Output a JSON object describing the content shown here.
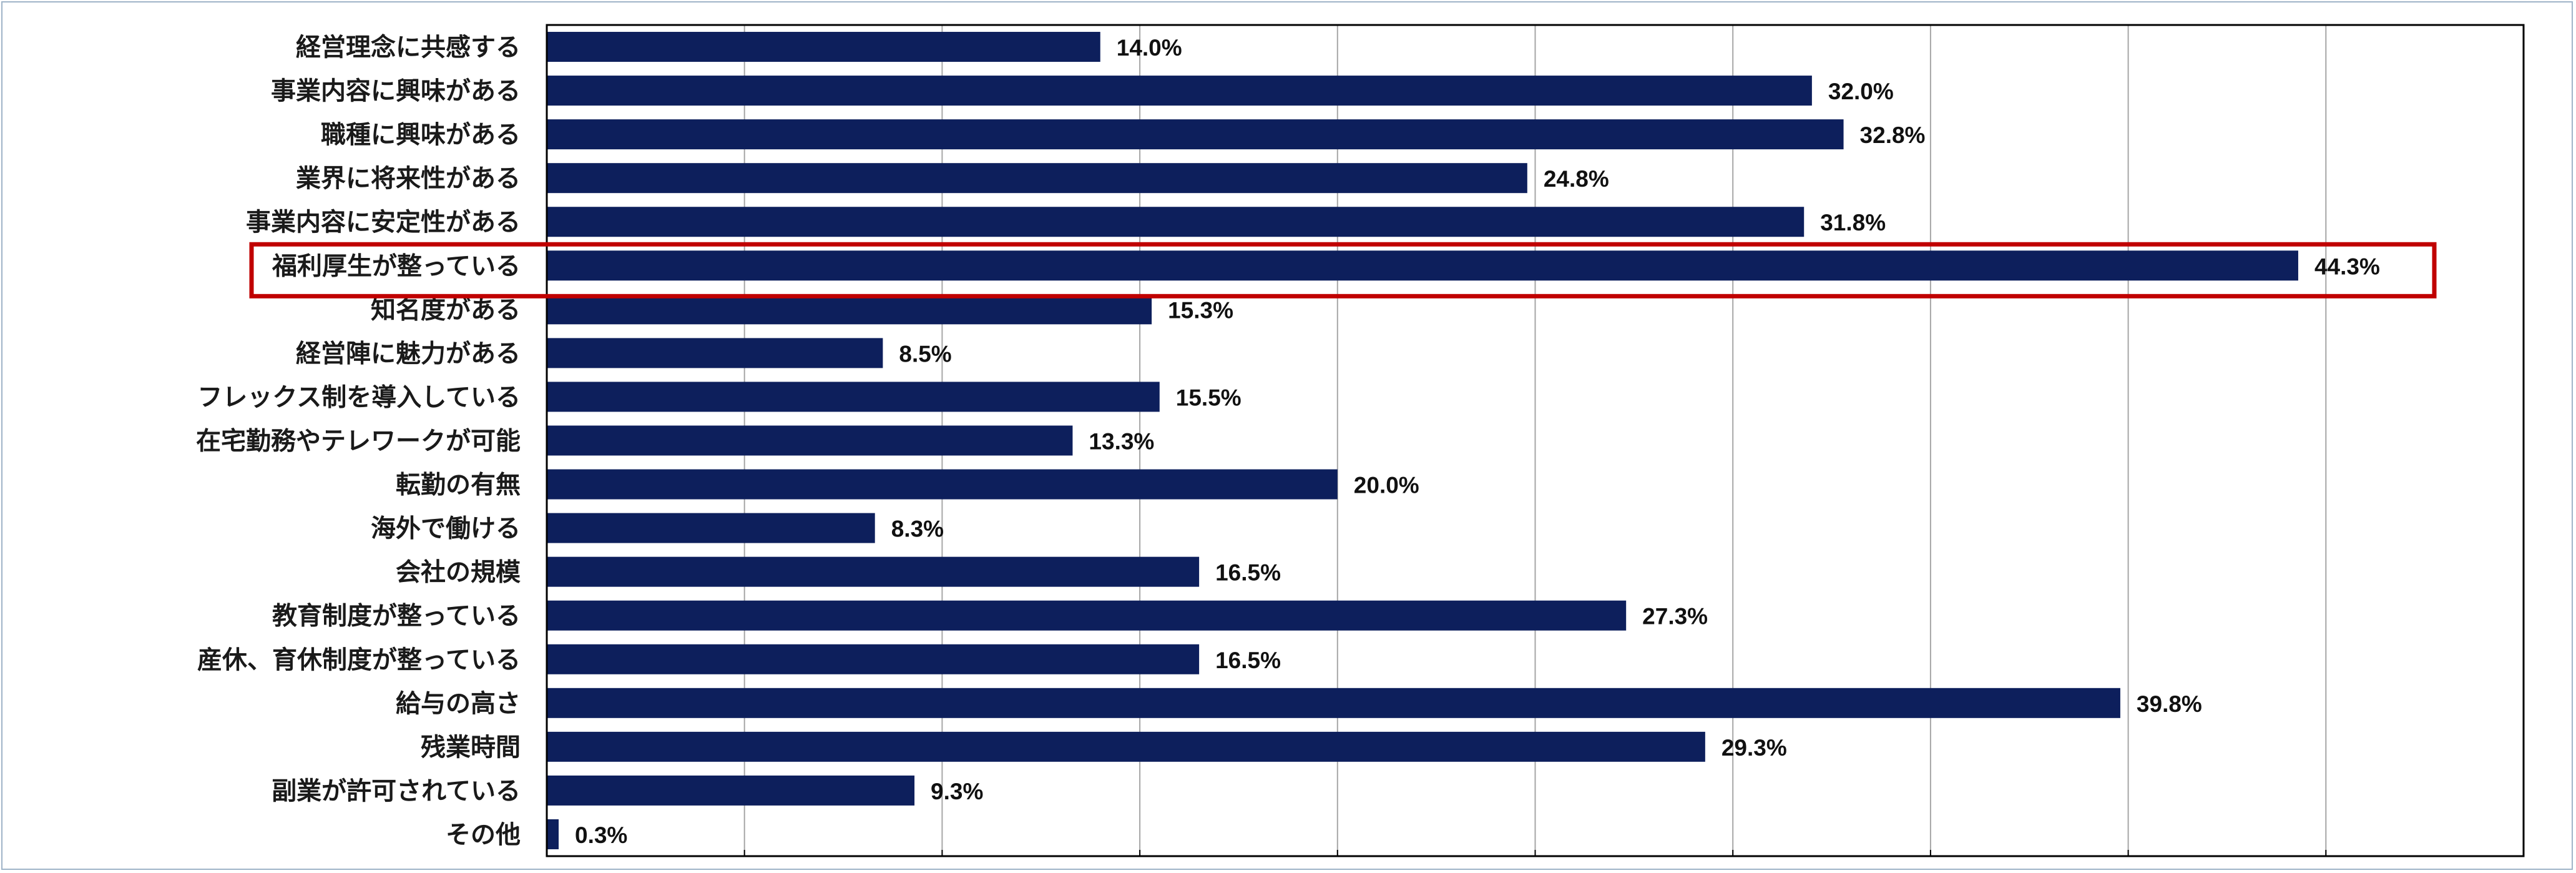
{
  "chart_data": {
    "type": "bar",
    "orientation": "horizontal",
    "categories": [
      "経営理念に共感する",
      "事業内容に興味がある",
      "職種に興味がある",
      "業界に将来性がある",
      "事業内容に安定性がある",
      "福利厚生が整っている",
      "知名度がある",
      "経営陣に魅力がある",
      "フレックス制を導入している",
      "在宅勤務やテレワークが可能",
      "転勤の有無",
      "海外で働ける",
      "会社の規模",
      "教育制度が整っている",
      "産休、育休制度が整っている",
      "給与の高さ",
      "残業時間",
      "副業が許可されている",
      "その他"
    ],
    "values": [
      14.0,
      32.0,
      32.8,
      24.8,
      31.8,
      44.3,
      15.3,
      8.5,
      15.5,
      13.3,
      20.0,
      8.3,
      16.5,
      27.3,
      16.5,
      39.8,
      29.3,
      9.3,
      0.3
    ],
    "value_labels": [
      "14.0%",
      "32.0%",
      "32.8%",
      "24.8%",
      "31.8%",
      "44.3%",
      "15.3%",
      "8.5%",
      "15.5%",
      "13.3%",
      "20.0%",
      "8.3%",
      "16.5%",
      "27.3%",
      "16.5%",
      "39.8%",
      "29.3%",
      "9.3%",
      "0.3%"
    ],
    "xlim": [
      0,
      50
    ],
    "x_grid_step": 5,
    "x_tick_labels_shown": false,
    "grid": true,
    "highlighted_category_index": 5,
    "colors": {
      "bar": "#0d1f5c",
      "highlight_box": "#c00000",
      "grid": "#a6a6a6",
      "axis": "#000000",
      "frame": "#9fb4c8"
    }
  }
}
